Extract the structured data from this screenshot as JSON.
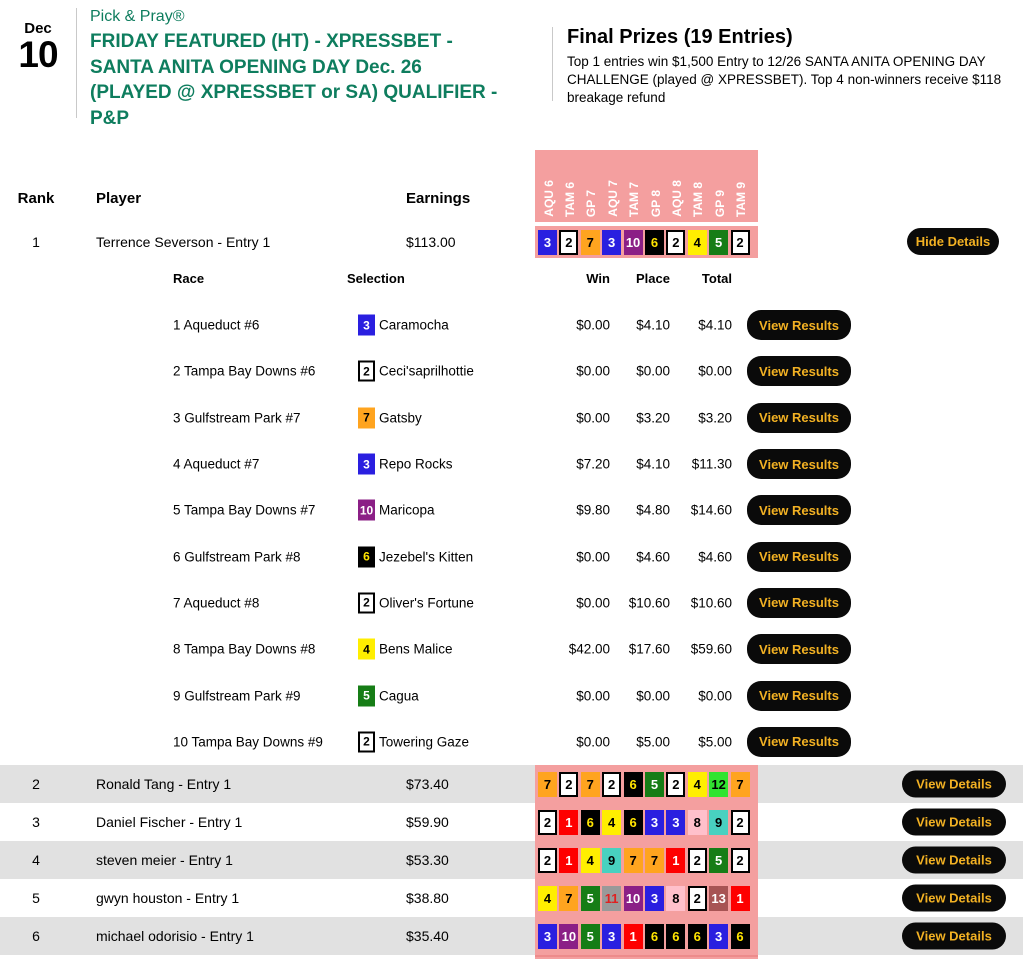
{
  "header": {
    "date_month": "Dec",
    "date_day": "10",
    "brand": "Pick & Pray®",
    "title": "FRIDAY FEATURED (HT) - XPRESSBET - SANTA ANITA OPENING DAY Dec. 26 (PLAYED @ XPRESSBET or SA) QUALIFIER - P&P",
    "prizes_title": "Final Prizes (19 Entries)",
    "prizes_text": "Top 1 entries win $1,500 Entry to 12/26 SANTA ANITA OPENING DAY CHALLENGE (played @ XPRESSBET). Top 4 non-winners receive $118 breakage refund"
  },
  "table": {
    "headers": {
      "rank": "Rank",
      "player": "Player",
      "earnings": "Earnings"
    },
    "race_columns": [
      "AQU 6",
      "TAM 6",
      "GP 7",
      "AQU 7",
      "TAM 7",
      "GP 8",
      "AQU 8",
      "TAM 8",
      "GP 9",
      "TAM 9"
    ],
    "detail_headers": {
      "race": "Race",
      "selection": "Selection",
      "win": "Win",
      "place": "Place",
      "total": "Total"
    },
    "buttons": {
      "hide_details": "Hide Details",
      "view_details": "View Details",
      "view_results": "View Results"
    }
  },
  "entries": [
    {
      "rank": "1",
      "player": "Terrence Severson - Entry 1",
      "earnings": "$113.00",
      "picks": [
        3,
        2,
        7,
        3,
        10,
        6,
        2,
        4,
        5,
        2
      ],
      "expanded": true
    },
    {
      "rank": "2",
      "player": "Ronald Tang - Entry 1",
      "earnings": "$73.40",
      "picks": [
        7,
        2,
        7,
        2,
        6,
        5,
        2,
        4,
        12,
        7
      ],
      "expanded": false
    },
    {
      "rank": "3",
      "player": "Daniel Fischer - Entry 1",
      "earnings": "$59.90",
      "picks": [
        2,
        1,
        6,
        4,
        6,
        3,
        3,
        8,
        9,
        2
      ],
      "expanded": false
    },
    {
      "rank": "4",
      "player": "steven meier - Entry 1",
      "earnings": "$53.30",
      "picks": [
        2,
        1,
        4,
        9,
        7,
        7,
        1,
        2,
        5,
        2
      ],
      "expanded": false
    },
    {
      "rank": "5",
      "player": "gwyn houston - Entry 1",
      "earnings": "$38.80",
      "picks": [
        4,
        7,
        5,
        11,
        10,
        3,
        8,
        2,
        13,
        1
      ],
      "expanded": false
    },
    {
      "rank": "6",
      "player": "michael odorisio - Entry 1",
      "earnings": "$35.40",
      "picks": [
        3,
        10,
        5,
        3,
        1,
        6,
        6,
        6,
        3,
        6
      ],
      "expanded": false
    }
  ],
  "details": [
    {
      "race": "1 Aqueduct #6",
      "pick": 3,
      "horse": "Caramocha",
      "win": "$0.00",
      "place": "$4.10",
      "total": "$4.10"
    },
    {
      "race": "2 Tampa Bay Downs #6",
      "pick": 2,
      "horse": "Ceci'saprilhottie",
      "win": "$0.00",
      "place": "$0.00",
      "total": "$0.00"
    },
    {
      "race": "3 Gulfstream Park #7",
      "pick": 7,
      "horse": "Gatsby",
      "win": "$0.00",
      "place": "$3.20",
      "total": "$3.20"
    },
    {
      "race": "4 Aqueduct #7",
      "pick": 3,
      "horse": "Repo Rocks",
      "win": "$7.20",
      "place": "$4.10",
      "total": "$11.30"
    },
    {
      "race": "5 Tampa Bay Downs #7",
      "pick": 10,
      "horse": "Maricopa",
      "win": "$9.80",
      "place": "$4.80",
      "total": "$14.60"
    },
    {
      "race": "6 Gulfstream Park #8",
      "pick": 6,
      "horse": "Jezebel's Kitten",
      "win": "$0.00",
      "place": "$4.60",
      "total": "$4.60"
    },
    {
      "race": "7 Aqueduct #8",
      "pick": 2,
      "horse": "Oliver's Fortune",
      "win": "$0.00",
      "place": "$10.60",
      "total": "$10.60"
    },
    {
      "race": "8 Tampa Bay Downs #8",
      "pick": 4,
      "horse": "Bens Malice",
      "win": "$42.00",
      "place": "$17.60",
      "total": "$59.60"
    },
    {
      "race": "9 Gulfstream Park #9",
      "pick": 5,
      "horse": "Cagua",
      "win": "$0.00",
      "place": "$0.00",
      "total": "$0.00"
    },
    {
      "race": "10 Tampa Bay Downs #9",
      "pick": 2,
      "horse": "Towering Gaze",
      "win": "$0.00",
      "place": "$5.00",
      "total": "$5.00"
    }
  ],
  "colors": {
    "accent_green": "#0e7d5e",
    "header_pink": "#f49f9f",
    "button_black": "#0a0a0a",
    "button_gold": "#f2b123",
    "row_gray": "#e1e1e1",
    "saddle_cloths": {
      "1": {
        "bg": "#fe0000",
        "fg": "#ffffff"
      },
      "2": {
        "bg": "#ffffff",
        "fg": "#000000",
        "border": "#000000"
      },
      "3": {
        "bg": "#2a1fe0",
        "fg": "#ffffff"
      },
      "4": {
        "bg": "#ffee00",
        "fg": "#000000"
      },
      "5": {
        "bg": "#167d16",
        "fg": "#ffffff"
      },
      "6": {
        "bg": "#000000",
        "fg": "#ffe400"
      },
      "7": {
        "bg": "#ffa41f",
        "fg": "#000000"
      },
      "8": {
        "bg": "#ffc0cb",
        "fg": "#000000"
      },
      "9": {
        "bg": "#48d1c0",
        "fg": "#000000"
      },
      "10": {
        "bg": "#8b1f86",
        "fg": "#ffffff"
      },
      "11": {
        "bg": "#999999",
        "fg": "#e02020"
      },
      "12": {
        "bg": "#30e430",
        "fg": "#000000"
      },
      "13": {
        "bg": "#a75454",
        "fg": "#ffffff"
      }
    }
  }
}
